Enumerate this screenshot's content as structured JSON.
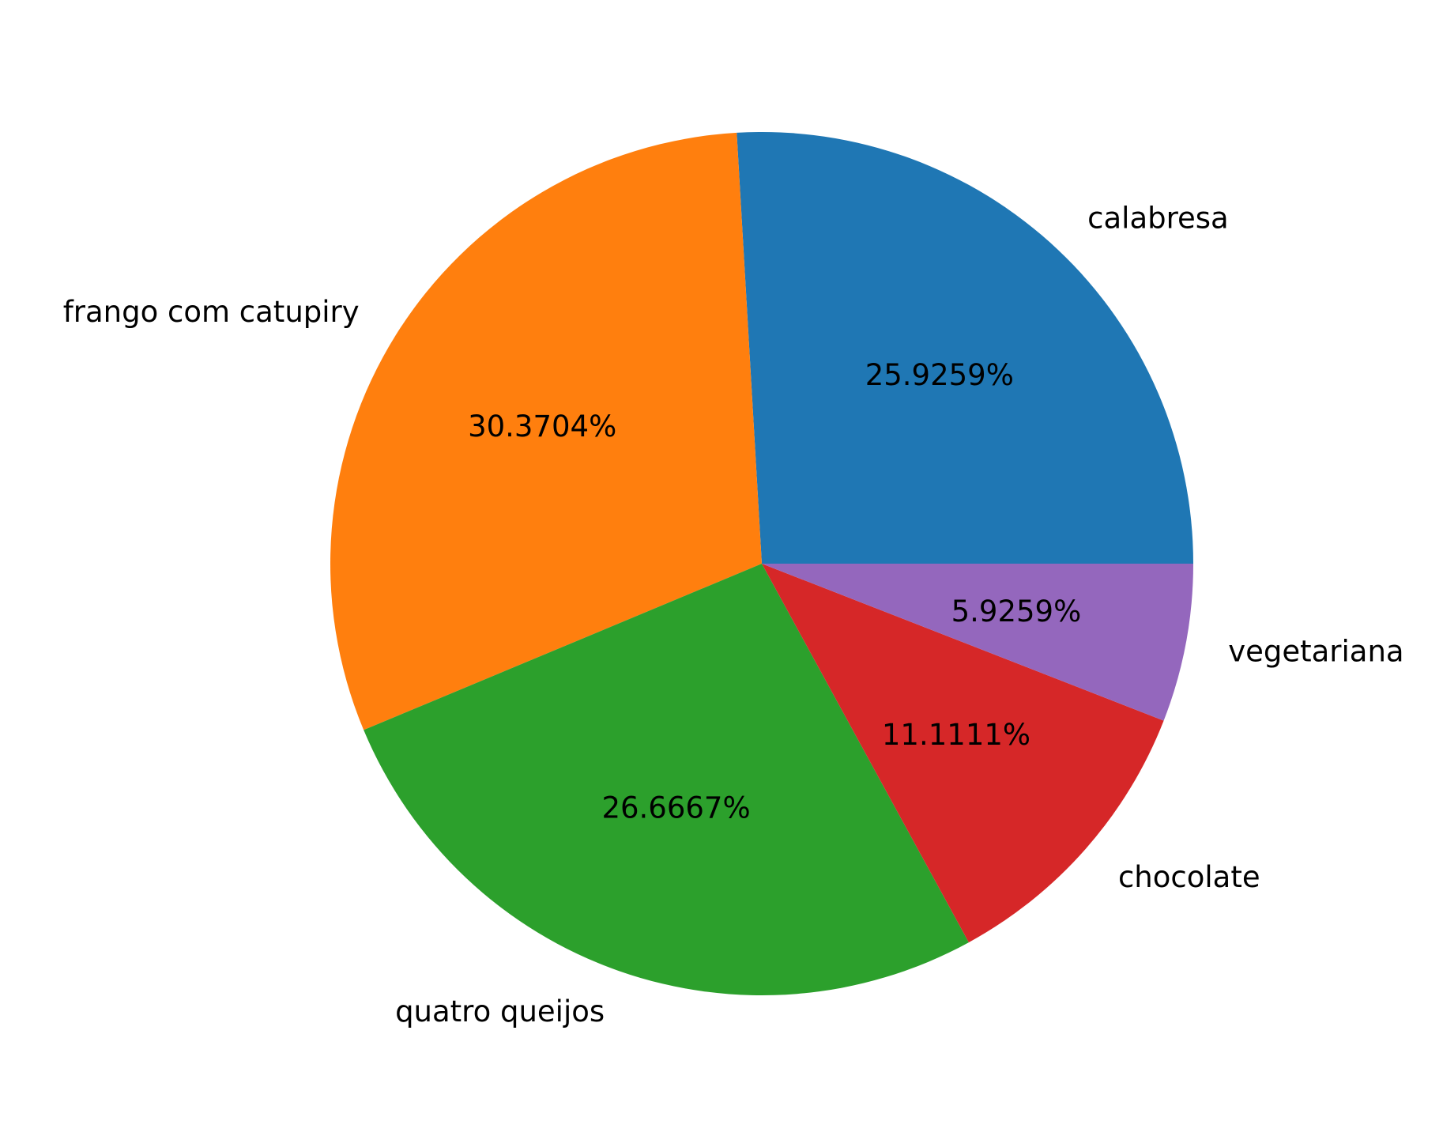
{
  "chart_data": {
    "type": "pie",
    "title": "",
    "start_angle_deg": 0,
    "direction": "counterclockwise",
    "legend": "none",
    "slices": [
      {
        "label": "calabresa",
        "value": 25.9259,
        "pct_label": "25.9259%",
        "color": "#1f77b4"
      },
      {
        "label": "frango com catupiry",
        "value": 30.3704,
        "pct_label": "30.3704%",
        "color": "#ff7f0e"
      },
      {
        "label": "quatro queijos",
        "value": 26.6667,
        "pct_label": "26.6667%",
        "color": "#2ca02c"
      },
      {
        "label": "chocolate",
        "value": 11.1111,
        "pct_label": "11.1111%",
        "color": "#d62728"
      },
      {
        "label": "vegetariana",
        "value": 5.9259,
        "pct_label": "5.9259%",
        "color": "#9467bd"
      }
    ]
  }
}
